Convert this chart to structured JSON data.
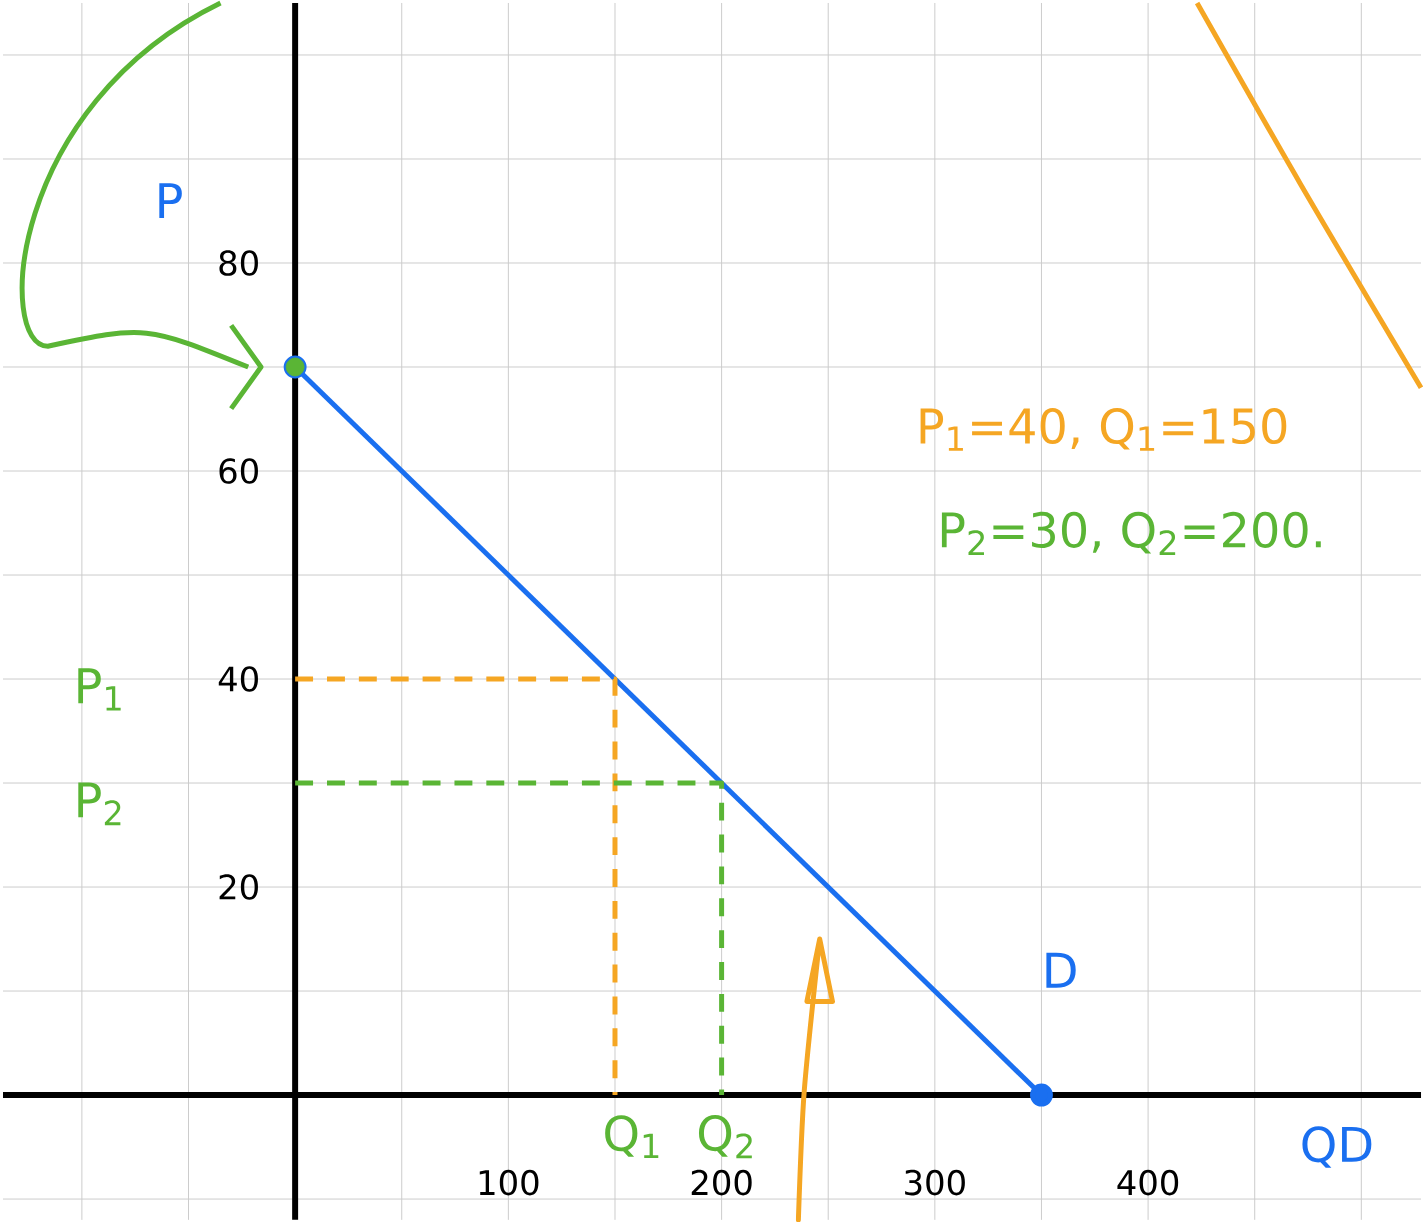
{
  "chart_data": {
    "type": "line",
    "xlim": [
      -137,
      528
    ],
    "ylim": [
      -12,
      105
    ],
    "xticks": [
      {
        "value": -100,
        "label": null
      },
      {
        "value": -50,
        "label": null
      },
      {
        "value": 0,
        "label": null
      },
      {
        "value": 50,
        "label": null
      },
      100,
      {
        "value": 150,
        "label": null
      },
      200,
      {
        "value": 250,
        "label": null
      },
      300,
      {
        "value": 350,
        "label": null
      },
      400,
      {
        "value": 450,
        "label": null
      },
      {
        "value": 500,
        "label": null
      }
    ],
    "yticks": [
      {
        "value": -10,
        "label": null
      },
      {
        "value": 0,
        "label": null
      },
      {
        "value": 10,
        "label": null
      },
      20,
      {
        "value": 30,
        "label": null
      },
      40,
      {
        "value": 50,
        "label": null
      },
      60,
      {
        "value": 70,
        "label": null
      },
      80,
      {
        "value": 90,
        "label": null
      },
      {
        "value": 100,
        "label": null
      }
    ],
    "grid": true,
    "series": [
      {
        "color": "#1a6ff0",
        "x": [
          0,
          350
        ],
        "values": [
          70,
          0
        ],
        "marker": "circle"
      },
      {
        "color": "#f5a623",
        "x": [
          0,
          150,
          150
        ],
        "values": [
          40,
          40,
          0
        ],
        "line_style": "dashed"
      },
      {
        "color": "#5ab535",
        "x": [
          0,
          200,
          200
        ],
        "values": [
          30,
          30,
          0
        ],
        "line_style": "dashed"
      },
      {
        "type": "scatter",
        "color": "#5ab535",
        "x": [
          0
        ],
        "values": [
          70
        ],
        "marker": "circle"
      }
    ],
    "annotations": [
      "P",
      "D",
      "QD",
      "P$_{1}$",
      "P$_{2}$",
      "Q$_{1}$",
      "Q$_{2}$",
      "P$_{1}$=40, Q$_{1}$=150",
      "P$_{2}$=30, Q$_{2}$=200."
    ]
  }
}
